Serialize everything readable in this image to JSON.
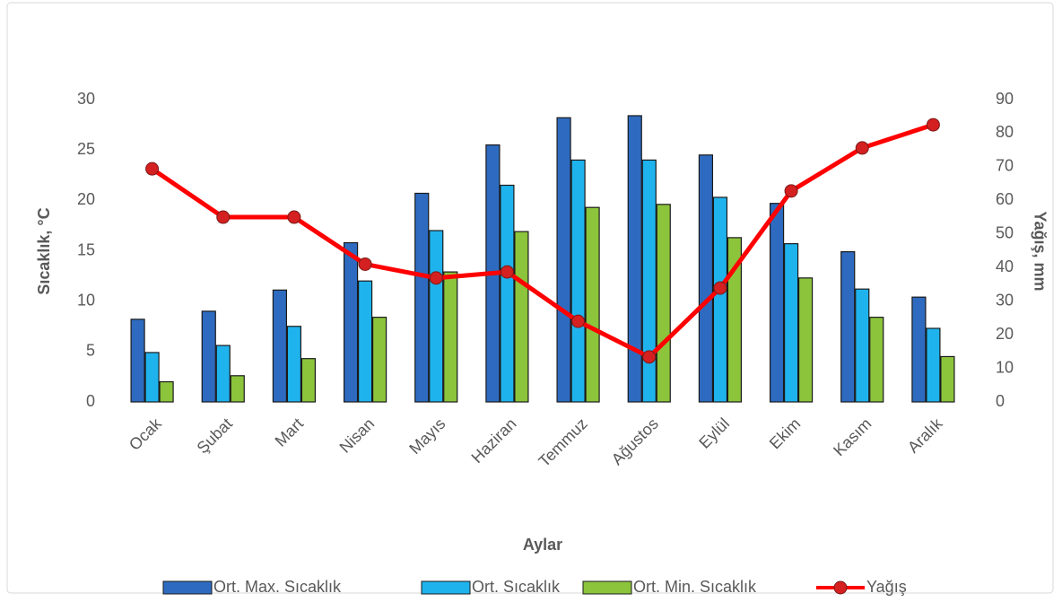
{
  "chart_data": {
    "type": "bar-line",
    "x_label": "Aylar",
    "y_label": "Sıcaklık, °C",
    "y2_label": "Yağış, mm",
    "categories": [
      "Ocak",
      "Şubat",
      "Mart",
      "Nisan",
      "Mayıs",
      "Haziran",
      "Temmuz",
      "Ağustos",
      "Eylül",
      "Ekim",
      "Kasım",
      "Aralık"
    ],
    "series": [
      {
        "name": "Ort. Max. Sıcaklık",
        "color": "#2e6bc0",
        "type": "bar",
        "values": [
          8.2,
          9.0,
          11.1,
          15.8,
          20.7,
          25.5,
          28.2,
          28.4,
          24.5,
          19.7,
          14.9,
          10.4
        ]
      },
      {
        "name": "Ort. Sıcaklık",
        "color": "#1fb3ee",
        "type": "bar",
        "values": [
          4.9,
          5.6,
          7.5,
          12.0,
          17.0,
          21.5,
          24.0,
          24.0,
          20.3,
          15.7,
          11.2,
          7.3
        ]
      },
      {
        "name": "Ort. Min. Sıcaklık",
        "color": "#8cc43c",
        "type": "bar",
        "values": [
          2.0,
          2.6,
          4.3,
          8.4,
          12.9,
          16.9,
          19.3,
          19.6,
          16.3,
          12.3,
          8.4,
          4.5
        ]
      },
      {
        "name": "Yağış",
        "color": "#ff0000",
        "type": "line",
        "axis": "y2",
        "values": [
          69.4,
          55,
          55,
          41,
          36.9,
          38.7,
          24,
          13.4,
          33.9,
          62.8,
          75.6,
          82.5
        ]
      }
    ],
    "ylim": [
      0,
      30
    ],
    "yticks": [
      0,
      5,
      10,
      15,
      20,
      25,
      30
    ],
    "y2lim": [
      0,
      90
    ],
    "y2ticks": [
      0,
      10,
      20,
      30,
      40,
      50,
      60,
      70,
      80,
      90
    ],
    "legend": "bottom"
  }
}
